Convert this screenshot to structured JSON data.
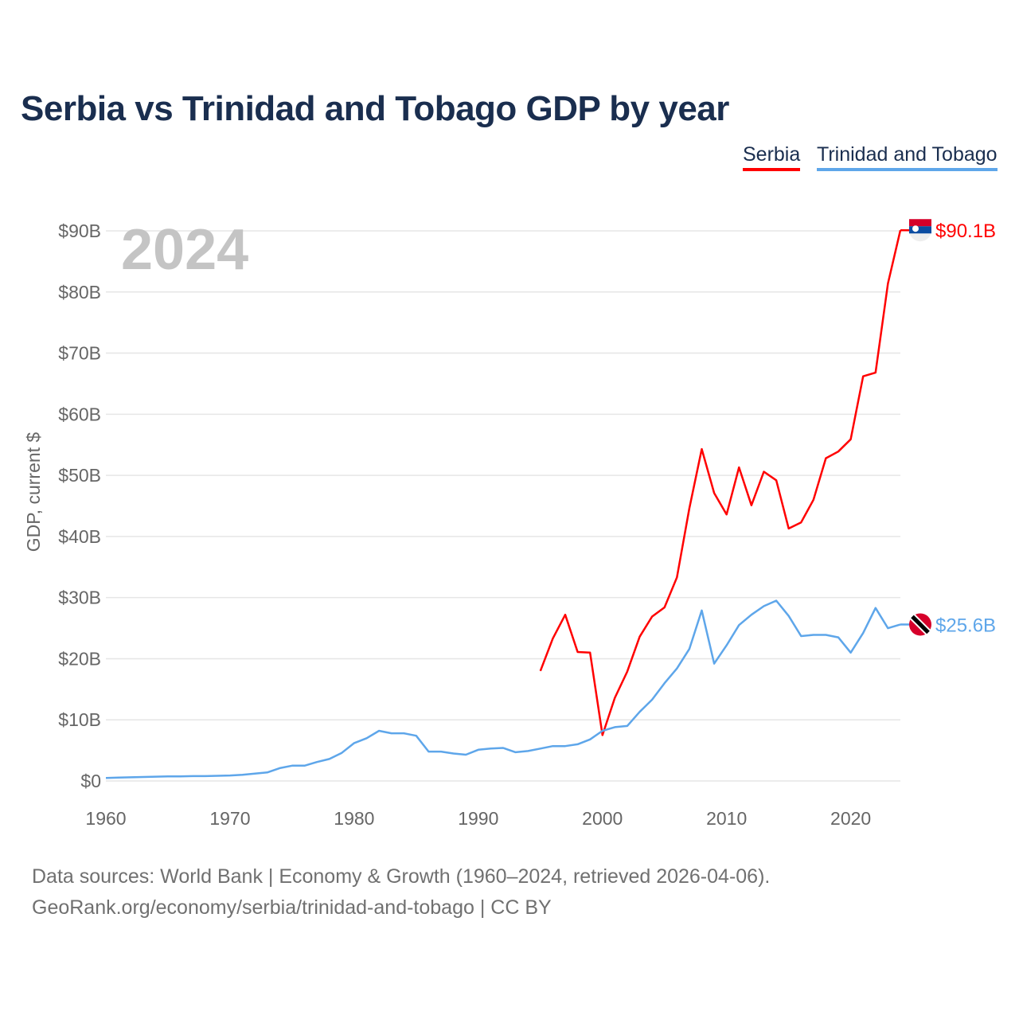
{
  "chart_data": {
    "type": "line",
    "title": "Serbia vs Trinidad and Tobago GDP by year",
    "ylabel": "GDP, current $",
    "xlabel": "",
    "year_label": "2024",
    "xlim": [
      1960,
      2024
    ],
    "ylim": [
      0,
      90
    ],
    "x_ticks": [
      1960,
      1970,
      1980,
      1990,
      2000,
      2010,
      2020
    ],
    "x_tick_labels": [
      "1960",
      "1970",
      "1980",
      "1990",
      "2000",
      "2010",
      "2020"
    ],
    "y_ticks": [
      0,
      10,
      20,
      30,
      40,
      50,
      60,
      70,
      80,
      90
    ],
    "y_tick_labels": [
      "$0",
      "$10B",
      "$20B",
      "$30B",
      "$40B",
      "$50B",
      "$60B",
      "$70B",
      "$80B",
      "$90B"
    ],
    "grid": true,
    "legend_position": "top-right",
    "series": [
      {
        "name": "Serbia",
        "color": "#ff0000",
        "end_label": "$90.1B",
        "start_year": 1995,
        "values": [
          18.0,
          23.3,
          27.2,
          21.1,
          21.0,
          7.5,
          13.6,
          17.9,
          23.6,
          26.9,
          28.4,
          33.3,
          44.6,
          54.3,
          47.1,
          43.6,
          51.3,
          45.1,
          50.6,
          49.2,
          41.3,
          42.3,
          46.0,
          52.8,
          53.9,
          55.9,
          66.2,
          66.8,
          81.4,
          90.1
        ]
      },
      {
        "name": "Trinidad and Tobago",
        "color": "#5ea6ea",
        "end_label": "$25.6B",
        "start_year": 1960,
        "values": [
          0.5,
          0.55,
          0.6,
          0.65,
          0.7,
          0.75,
          0.75,
          0.8,
          0.8,
          0.85,
          0.9,
          1.0,
          1.2,
          1.4,
          2.1,
          2.5,
          2.5,
          3.1,
          3.6,
          4.6,
          6.2,
          7.0,
          8.2,
          7.8,
          7.8,
          7.4,
          4.8,
          4.8,
          4.5,
          4.3,
          5.1,
          5.3,
          5.4,
          4.7,
          4.9,
          5.3,
          5.7,
          5.7,
          6.0,
          6.8,
          8.2,
          8.8,
          9.0,
          11.3,
          13.3,
          16.0,
          18.4,
          21.6,
          27.9,
          19.2,
          22.2,
          25.5,
          27.2,
          28.6,
          29.5,
          27.0,
          23.7,
          23.9,
          23.9,
          23.5,
          21.0,
          24.2,
          28.3,
          25.0,
          25.6
        ]
      }
    ]
  },
  "footer": {
    "line1": "Data sources: World Bank | Economy & Growth (1960–2024, retrieved 2026-04-06).",
    "line2": "GeoRank.org/economy/serbia/trinidad-and-tobago | CC BY"
  }
}
